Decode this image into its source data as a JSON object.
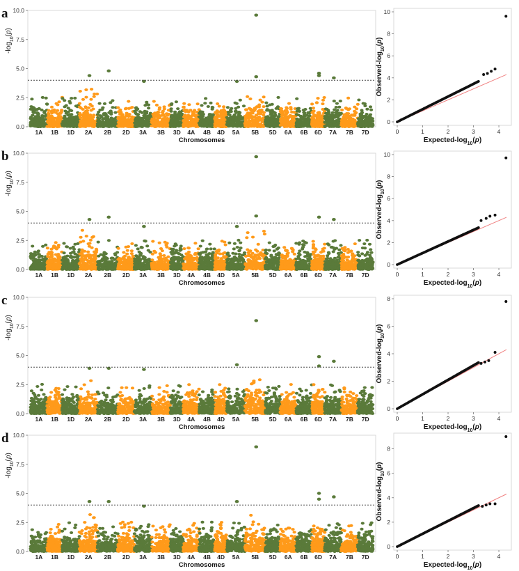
{
  "colors": {
    "green": "#5a7a3a",
    "orange": "#ff9a1a",
    "threshold": "#444444",
    "qq_points": "#111111",
    "qq_line": "#f08080",
    "frame": "#d9d9d9"
  },
  "chart_data": [
    {
      "panel": "a",
      "manhattan": {
        "type": "scatter",
        "xlabel": "Chromosomes",
        "ylabel": "-log10(p)",
        "ylim": [
          0,
          10
        ],
        "yticks": [
          "0.0",
          "2.5",
          "5.0",
          "7.5",
          "10.0"
        ],
        "threshold": 4.0,
        "chromosomes": [
          "1A",
          "1B",
          "1D",
          "2A",
          "2B",
          "2D",
          "3A",
          "3B",
          "3D",
          "4A",
          "4B",
          "4D",
          "5A",
          "5B",
          "5D",
          "6A",
          "6B",
          "6D",
          "7A",
          "7B",
          "7D"
        ],
        "peaks": [
          {
            "chrom": "2A",
            "value": 4.4
          },
          {
            "chrom": "2B",
            "value": 4.8
          },
          {
            "chrom": "3A",
            "value": 3.9
          },
          {
            "chrom": "5A",
            "value": 3.9
          },
          {
            "chrom": "5B",
            "value": 9.6
          },
          {
            "chrom": "5B",
            "value": 4.3
          },
          {
            "chrom": "6D",
            "value": 4.6
          },
          {
            "chrom": "6D",
            "value": 4.4
          },
          {
            "chrom": "7A",
            "value": 4.2
          }
        ]
      },
      "qq": {
        "type": "scatter",
        "xlabel": "Expected-log10(p)",
        "ylabel": "Observed-log10(p)",
        "xlim": [
          0,
          4.3
        ],
        "ylim": [
          0,
          10
        ],
        "xticks": [
          "0",
          "1",
          "2",
          "3",
          "4"
        ],
        "yticks": [
          "0",
          "2",
          "4",
          "6",
          "8",
          "10"
        ],
        "slope": 1.15,
        "top_points": [
          {
            "x": 3.4,
            "y": 4.3
          },
          {
            "x": 3.55,
            "y": 4.4
          },
          {
            "x": 3.7,
            "y": 4.6
          },
          {
            "x": 3.85,
            "y": 4.8
          },
          {
            "x": 4.28,
            "y": 9.6
          }
        ]
      }
    },
    {
      "panel": "b",
      "manhattan": {
        "type": "scatter",
        "xlabel": "Chromosomes",
        "ylabel": "-log10(p)",
        "ylim": [
          0,
          10
        ],
        "yticks": [
          "0.0",
          "2.5",
          "5.0",
          "7.5",
          "10.0"
        ],
        "threshold": 4.0,
        "chromosomes": [
          "1A",
          "1B",
          "1D",
          "2A",
          "2B",
          "2D",
          "3A",
          "3B",
          "3D",
          "4A",
          "4B",
          "4D",
          "5A",
          "5B",
          "5D",
          "6A",
          "6B",
          "6D",
          "7A",
          "7B",
          "7D"
        ],
        "peaks": [
          {
            "chrom": "2A",
            "value": 4.3
          },
          {
            "chrom": "2B",
            "value": 4.5
          },
          {
            "chrom": "3A",
            "value": 3.7
          },
          {
            "chrom": "5A",
            "value": 3.7
          },
          {
            "chrom": "5B",
            "value": 9.7
          },
          {
            "chrom": "5B",
            "value": 4.6
          },
          {
            "chrom": "6D",
            "value": 4.5
          },
          {
            "chrom": "7A",
            "value": 4.3
          }
        ]
      },
      "qq": {
        "type": "scatter",
        "xlabel": "Expected-log10(p)",
        "ylabel": "Observed-log10(p)",
        "xlim": [
          0,
          4.3
        ],
        "ylim": [
          0,
          10
        ],
        "xticks": [
          "0",
          "1",
          "2",
          "3",
          "4"
        ],
        "yticks": [
          "0",
          "2",
          "4",
          "6",
          "8",
          "10"
        ],
        "slope": 1.05,
        "top_points": [
          {
            "x": 3.3,
            "y": 4.0
          },
          {
            "x": 3.5,
            "y": 4.2
          },
          {
            "x": 3.65,
            "y": 4.4
          },
          {
            "x": 3.85,
            "y": 4.5
          },
          {
            "x": 4.28,
            "y": 9.7
          }
        ]
      }
    },
    {
      "panel": "c",
      "manhattan": {
        "type": "scatter",
        "xlabel": "Chromosomes",
        "ylabel": "-log10(p)",
        "ylim": [
          0,
          10
        ],
        "yticks": [
          "0.0",
          "2.5",
          "5.0",
          "7.5",
          "10.0"
        ],
        "threshold": 4.0,
        "chromosomes": [
          "1A",
          "1B",
          "1D",
          "2A",
          "2B",
          "2D",
          "3A",
          "3B",
          "3D",
          "4A",
          "4B",
          "4D",
          "5A",
          "5B",
          "5D",
          "6A",
          "6B",
          "6D",
          "7A",
          "7B",
          "7D"
        ],
        "peaks": [
          {
            "chrom": "2A",
            "value": 3.9
          },
          {
            "chrom": "2B",
            "value": 3.9
          },
          {
            "chrom": "3A",
            "value": 3.8
          },
          {
            "chrom": "5A",
            "value": 4.2
          },
          {
            "chrom": "5B",
            "value": 8.0
          },
          {
            "chrom": "6D",
            "value": 4.9
          },
          {
            "chrom": "6D",
            "value": 4.1
          },
          {
            "chrom": "7A",
            "value": 4.5
          }
        ]
      },
      "qq": {
        "type": "scatter",
        "xlabel": "Expected-log10(p)",
        "ylabel": "Observed-log10(p)",
        "xlim": [
          0,
          4.3
        ],
        "ylim": [
          0,
          8
        ],
        "xticks": [
          "0",
          "1",
          "2",
          "3",
          "4"
        ],
        "yticks": [
          "0",
          "2",
          "4",
          "6",
          "8"
        ],
        "slope": 1.05,
        "top_points": [
          {
            "x": 3.3,
            "y": 3.3
          },
          {
            "x": 3.45,
            "y": 3.4
          },
          {
            "x": 3.6,
            "y": 3.5
          },
          {
            "x": 3.85,
            "y": 4.1
          },
          {
            "x": 4.28,
            "y": 7.8
          }
        ]
      }
    },
    {
      "panel": "d",
      "manhattan": {
        "type": "scatter",
        "xlabel": "Chromosomes",
        "ylabel": "-log10(p)",
        "ylim": [
          0,
          10
        ],
        "yticks": [
          "0.0",
          "2.5",
          "5.0",
          "7.5",
          "10.0"
        ],
        "threshold": 4.0,
        "chromosomes": [
          "1A",
          "1B",
          "1D",
          "2A",
          "2B",
          "2D",
          "3A",
          "3B",
          "3D",
          "4A",
          "4B",
          "4D",
          "5A",
          "5B",
          "5D",
          "6A",
          "6B",
          "6D",
          "7A",
          "7B",
          "7D"
        ],
        "peaks": [
          {
            "chrom": "2A",
            "value": 4.3
          },
          {
            "chrom": "2B",
            "value": 4.3
          },
          {
            "chrom": "3A",
            "value": 3.9
          },
          {
            "chrom": "5A",
            "value": 4.3
          },
          {
            "chrom": "5B",
            "value": 9.0
          },
          {
            "chrom": "6D",
            "value": 5.0
          },
          {
            "chrom": "6D",
            "value": 4.5
          },
          {
            "chrom": "7A",
            "value": 4.7
          }
        ]
      },
      "qq": {
        "type": "scatter",
        "xlabel": "Expected-log10(p)",
        "ylabel": "Observed-log10(p)",
        "xlim": [
          0,
          4.3
        ],
        "ylim": [
          0,
          9
        ],
        "xticks": [
          "0",
          "1",
          "2",
          "3",
          "4"
        ],
        "yticks": [
          "0",
          "2",
          "4",
          "6",
          "8"
        ],
        "slope": 1.05,
        "top_points": [
          {
            "x": 3.35,
            "y": 3.3
          },
          {
            "x": 3.5,
            "y": 3.4
          },
          {
            "x": 3.65,
            "y": 3.5
          },
          {
            "x": 3.85,
            "y": 3.5
          },
          {
            "x": 4.28,
            "y": 9.0
          }
        ]
      }
    }
  ]
}
